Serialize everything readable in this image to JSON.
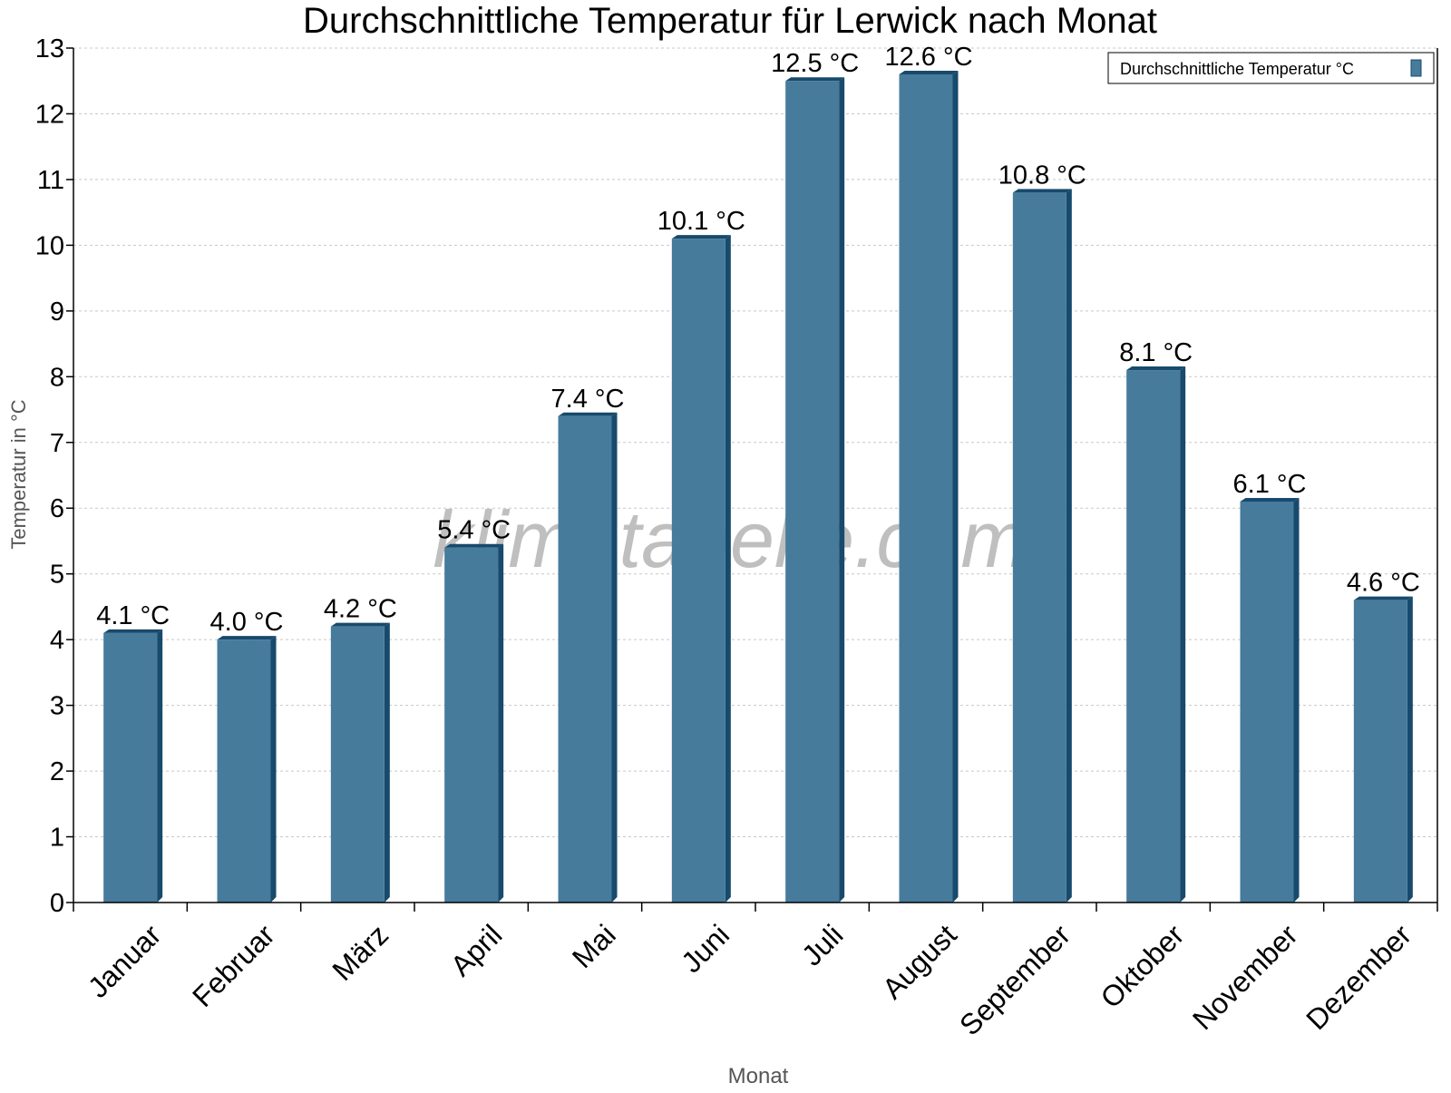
{
  "chart_data": {
    "type": "bar",
    "title": "Durchschnittliche Temperatur für Lerwick nach Monat",
    "xlabel": "Monat",
    "ylabel": "Temperatur in °C",
    "ylim": [
      0,
      13
    ],
    "yticks": [
      0,
      1,
      2,
      3,
      4,
      5,
      6,
      7,
      8,
      9,
      10,
      11,
      12,
      13
    ],
    "grid": true,
    "legend_placement": "top-right",
    "categories": [
      "Januar",
      "Februar",
      "März",
      "April",
      "Mai",
      "Juni",
      "Juli",
      "August",
      "September",
      "Oktober",
      "November",
      "Dezember"
    ],
    "series": [
      {
        "name": "Durchschnittliche Temperatur °C",
        "values": [
          4.1,
          4.0,
          4.2,
          5.4,
          7.4,
          10.1,
          12.5,
          12.6,
          10.8,
          8.1,
          6.1,
          4.6
        ],
        "labels": [
          "4.1 °C",
          "4.0 °C",
          "4.2 °C",
          "5.4 °C",
          "7.4 °C",
          "10.1 °C",
          "12.5 °C",
          "12.6 °C",
          "10.8 °C",
          "8.1 °C",
          "6.1 °C",
          "4.6 °C"
        ]
      }
    ],
    "watermark": "klimatabelle.com",
    "colors": {
      "bar": "#467b9c",
      "bar_side": "#174a6c",
      "grid": "#c8c8c8"
    }
  }
}
